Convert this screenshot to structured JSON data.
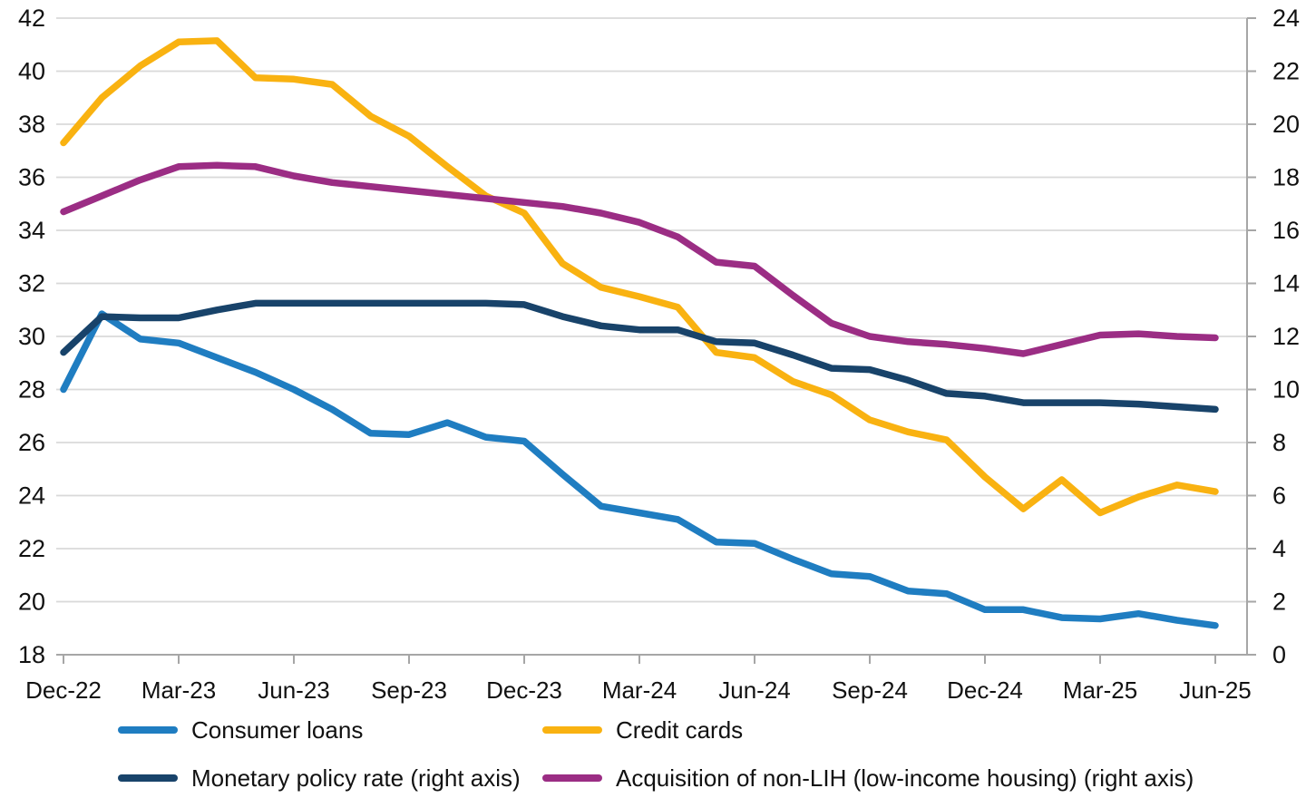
{
  "chart_data": {
    "type": "line",
    "title": "",
    "xlabel": "",
    "ylabel_left": "",
    "ylabel_right": "",
    "grid": true,
    "legend_position": "bottom",
    "left_axis": {
      "min": 18,
      "max": 42,
      "step": 2,
      "tick_labels": [
        "18",
        "20",
        "22",
        "24",
        "26",
        "28",
        "30",
        "32",
        "34",
        "36",
        "38",
        "40",
        "42"
      ]
    },
    "right_axis": {
      "min": 0,
      "max": 24,
      "step": 2,
      "tick_labels": [
        "0",
        "2",
        "4",
        "6",
        "8",
        "10",
        "12",
        "14",
        "16",
        "18",
        "20",
        "22",
        "24"
      ]
    },
    "x": [
      "Dec-22",
      "Jan-23",
      "Feb-23",
      "Mar-23",
      "Apr-23",
      "May-23",
      "Jun-23",
      "Jul-23",
      "Aug-23",
      "Sep-23",
      "Oct-23",
      "Nov-23",
      "Dec-23",
      "Jan-24",
      "Feb-24",
      "Mar-24",
      "Apr-24",
      "May-24",
      "Jun-24",
      "Jul-24",
      "Aug-24",
      "Sep-24",
      "Oct-24",
      "Nov-24",
      "Dec-24",
      "Jan-25",
      "Feb-25",
      "Mar-25",
      "Apr-25",
      "May-25",
      "Jun-25"
    ],
    "x_tick_labels": [
      "Dec-22",
      "Mar-23",
      "Jun-23",
      "Sep-23",
      "Dec-23",
      "Mar-24",
      "Jun-24",
      "Sep-24",
      "Dec-24",
      "Mar-25",
      "Jun-25"
    ],
    "x_tick_every": 3,
    "series": [
      {
        "name": "Consumer loans",
        "axis": "left",
        "color": "#1F7DC1",
        "values": [
          28.0,
          30.85,
          29.9,
          29.75,
          29.2,
          28.65,
          28.0,
          27.25,
          26.35,
          26.3,
          26.75,
          26.2,
          26.05,
          24.8,
          23.6,
          23.35,
          23.1,
          22.25,
          22.2,
          21.6,
          21.05,
          20.95,
          20.4,
          20.3,
          19.7,
          19.7,
          19.4,
          19.35,
          19.55,
          19.3,
          19.1
        ]
      },
      {
        "name": "Credit cards",
        "axis": "left",
        "color": "#F9B211",
        "values": [
          37.3,
          39.0,
          40.2,
          41.1,
          41.15,
          39.75,
          39.7,
          39.5,
          38.3,
          37.55,
          36.4,
          35.3,
          34.65,
          32.75,
          31.85,
          31.5,
          31.1,
          29.4,
          29.2,
          28.3,
          27.8,
          26.85,
          26.4,
          26.1,
          24.7,
          23.5,
          24.6,
          23.35,
          23.95,
          24.4,
          24.15
        ]
      },
      {
        "name": "Monetary policy rate (right axis)",
        "axis": "right",
        "color": "#18436A",
        "values": [
          11.4,
          12.75,
          12.7,
          12.7,
          13.0,
          13.25,
          13.25,
          13.25,
          13.25,
          13.25,
          13.25,
          13.25,
          13.2,
          12.75,
          12.4,
          12.25,
          12.25,
          11.8,
          11.75,
          11.3,
          10.8,
          10.75,
          10.35,
          9.85,
          9.75,
          9.5,
          9.5,
          9.5,
          9.45,
          9.35,
          9.25
        ]
      },
      {
        "name": "Acquisition of non-LIH (low-income housing) (right axis)",
        "axis": "right",
        "color": "#9B2D84",
        "values": [
          16.7,
          17.3,
          17.9,
          18.4,
          18.45,
          18.4,
          18.05,
          17.8,
          17.65,
          17.5,
          17.35,
          17.2,
          17.05,
          16.9,
          16.65,
          16.3,
          15.75,
          14.8,
          14.65,
          13.55,
          12.5,
          12.0,
          11.8,
          11.7,
          11.55,
          11.35,
          11.7,
          12.05,
          12.1,
          12.0,
          11.95
        ]
      }
    ],
    "style": {
      "gridline_color": "#D9D9D9",
      "axis_color": "#A6A6A6",
      "text_color": "#111111",
      "line_width": 7.5
    }
  }
}
